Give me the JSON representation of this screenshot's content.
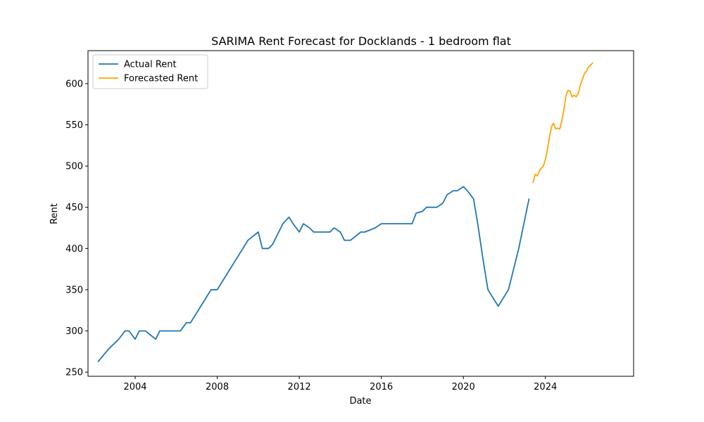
{
  "chart_data": {
    "type": "line",
    "title": "SARIMA Rent Forecast for Docklands - 1 bedroom flat",
    "xlabel": "Date",
    "ylabel": "Rent",
    "xlim": [
      2001.7,
      2028.3
    ],
    "ylim": [
      245,
      640
    ],
    "x_ticks": [
      2004,
      2008,
      2012,
      2016,
      2020,
      2024
    ],
    "x_tick_labels": [
      "2004",
      "2008",
      "2012",
      "2016",
      "2020",
      "2024"
    ],
    "y_ticks": [
      250,
      300,
      350,
      400,
      450,
      500,
      550,
      600
    ],
    "y_tick_labels": [
      "250",
      "300",
      "350",
      "400",
      "450",
      "500",
      "550",
      "600"
    ],
    "grid": false,
    "legend_position": "top-left",
    "series": [
      {
        "name": "Actual Rent",
        "color": "#1f77b4",
        "x": [
          2002.2,
          2002.7,
          2003.2,
          2003.5,
          2003.7,
          2004.0,
          2004.2,
          2004.5,
          2005.0,
          2005.2,
          2005.5,
          2006.2,
          2006.5,
          2006.7,
          2007.2,
          2007.7,
          2008.0,
          2008.5,
          2009.0,
          2009.5,
          2010.0,
          2010.2,
          2010.5,
          2010.7,
          2011.0,
          2011.2,
          2011.5,
          2011.7,
          2012.0,
          2012.2,
          2012.5,
          2012.7,
          2013.0,
          2013.5,
          2013.7,
          2014.0,
          2014.2,
          2014.5,
          2015.0,
          2015.2,
          2015.5,
          2015.7,
          2016.0,
          2016.5,
          2017.0,
          2017.5,
          2017.7,
          2018.0,
          2018.2,
          2018.5,
          2018.7,
          2019.0,
          2019.2,
          2019.5,
          2019.7,
          2020.0,
          2020.2,
          2020.5,
          2020.7,
          2021.0,
          2021.2,
          2021.7,
          2022.2,
          2022.5,
          2022.7,
          2023.2
        ],
        "values": [
          263,
          278,
          290,
          300,
          300,
          290,
          300,
          300,
          290,
          300,
          300,
          300,
          310,
          310,
          330,
          350,
          350,
          370,
          390,
          410,
          420,
          400,
          400,
          405,
          420,
          430,
          438,
          430,
          420,
          430,
          425,
          420,
          420,
          420,
          425,
          420,
          410,
          410,
          420,
          420,
          423,
          425,
          430,
          430,
          430,
          430,
          443,
          445,
          450,
          450,
          450,
          455,
          465,
          470,
          470,
          475,
          470,
          460,
          430,
          380,
          350,
          330,
          350,
          380,
          400,
          460
        ]
      },
      {
        "name": "Forecasted Rent",
        "color": "#ffa500",
        "x": [
          2023.4,
          2023.5,
          2023.6,
          2023.75,
          2023.9,
          2024.0,
          2024.1,
          2024.2,
          2024.3,
          2024.4,
          2024.5,
          2024.6,
          2024.7,
          2024.8,
          2024.9,
          2025.0,
          2025.1,
          2025.2,
          2025.3,
          2025.4,
          2025.5,
          2025.6,
          2025.7,
          2025.8,
          2025.9,
          2026.0,
          2026.1,
          2026.3
        ],
        "values": [
          480,
          490,
          488,
          496,
          500,
          508,
          520,
          535,
          548,
          552,
          545,
          546,
          545,
          555,
          568,
          585,
          592,
          591,
          584,
          586,
          584,
          588,
          598,
          605,
          612,
          615,
          620,
          625
        ]
      }
    ]
  }
}
